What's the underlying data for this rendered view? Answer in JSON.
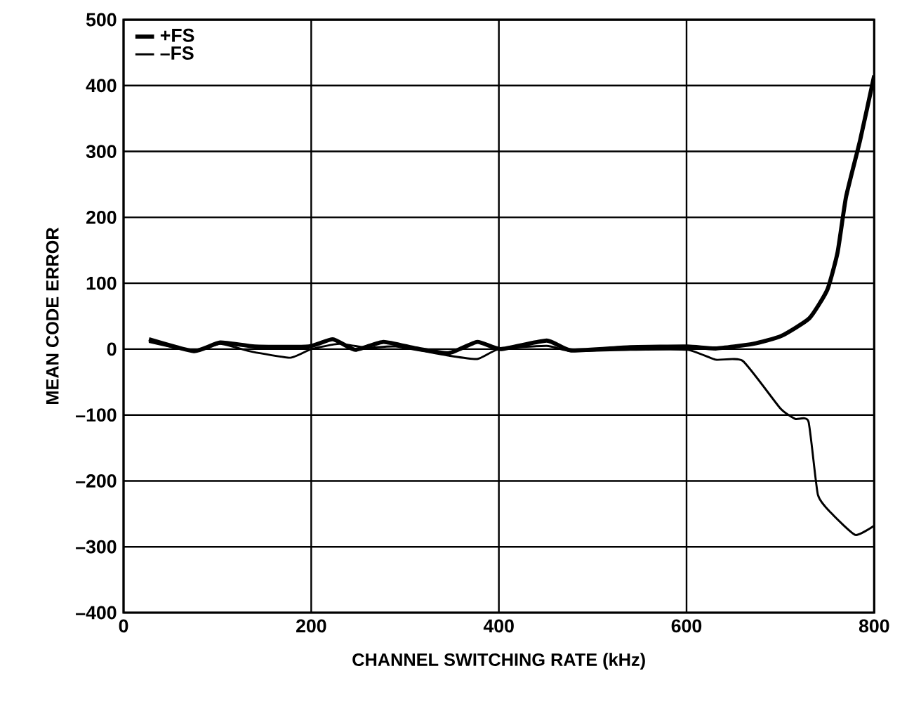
{
  "chart_data": {
    "type": "line",
    "xlabel": "CHANNEL SWITCHING RATE  (kHz)",
    "ylabel": "MEAN CODE ERROR",
    "xlim": [
      0,
      800
    ],
    "xticks": [
      0,
      200,
      400,
      600,
      800
    ],
    "ylim": [
      -400,
      500
    ],
    "yticks": [
      {
        "value": -400,
        "label": "–400"
      },
      {
        "value": -300,
        "label": "–300"
      },
      {
        "value": -200,
        "label": "–200"
      },
      {
        "value": -100,
        "label": "–100"
      },
      0,
      100,
      200,
      300,
      400,
      500
    ],
    "grid": true,
    "legend": "top left",
    "line_style": "solid",
    "series": [
      {
        "name": "+FS",
        "color": "#000000",
        "x": [
          27,
          75,
          103,
          140,
          197,
          223,
          247,
          277,
          312,
          347,
          377,
          402,
          451,
          477,
          540,
          601,
          631,
          671,
          701,
          731,
          750,
          761,
          770,
          785,
          800
        ],
        "values": [
          15,
          -3,
          10,
          4,
          4,
          15,
          -1,
          11,
          1,
          -6,
          11,
          0,
          13,
          -2,
          3,
          4,
          1,
          8,
          20,
          47,
          90,
          147,
          231,
          317,
          415
        ]
      },
      {
        "name": "–FS",
        "color": "#000000",
        "x": [
          27,
          75,
          103,
          137,
          178,
          200,
          230,
          260,
          290,
          347,
          377,
          400,
          451,
          477,
          540,
          601,
          631,
          660,
          700,
          716,
          730,
          740,
          755,
          780,
          800
        ],
        "values": [
          11,
          -3,
          8,
          -4,
          -13,
          0,
          8,
          2,
          4,
          -10,
          -15,
          0,
          5,
          -3,
          -1,
          -1,
          -16,
          -18,
          -90,
          -106,
          -110,
          -221,
          -250,
          -282,
          -268
        ]
      }
    ]
  }
}
